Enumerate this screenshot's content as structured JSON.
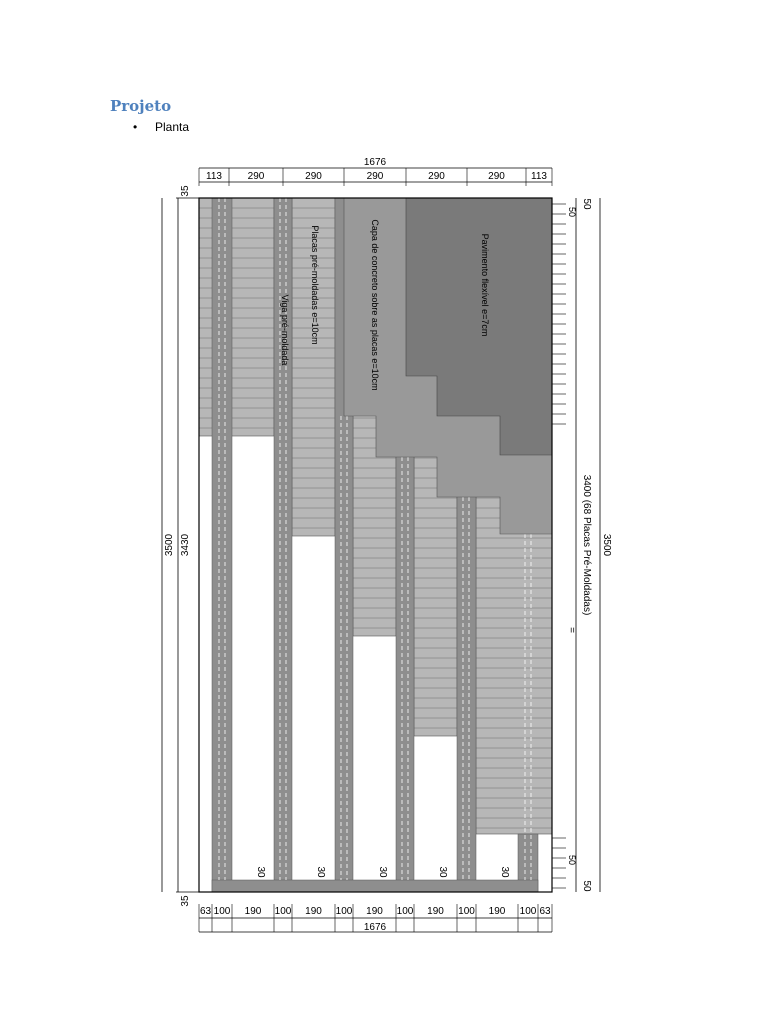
{
  "heading": "Projeto",
  "bullet": {
    "marker": "•",
    "text": "Planta"
  },
  "dimensions": {
    "total_width": "1676",
    "top_segments": [
      "113",
      "290",
      "290",
      "290",
      "290",
      "290",
      "113"
    ],
    "bottom_segments": [
      "63",
      "100",
      "190",
      "100",
      "190",
      "100",
      "190",
      "100",
      "190",
      "100",
      "190",
      "100",
      "63"
    ],
    "left_top": "35",
    "left_bottom": "35",
    "left_inner": "3430",
    "left_outer": "3500",
    "right_outer": "3500",
    "right_inner": "3400 (68 Placas Pré-Moldadas)",
    "right_top": "50",
    "right_bottom": "50",
    "right_small_top": "50",
    "right_small_bottom": "50",
    "slab_gap": "30",
    "equal_mark": "="
  },
  "labels": {
    "slabs": "Placas pré-moldadas e=10cm",
    "beam": "Viga pré-moldada",
    "concrete_cover": "Capa de concreto sobre as placas e=10cm",
    "flexible_pavement": "Pavimento flexível e=7cm"
  },
  "colors": {
    "slab": "#b7b7b7",
    "beam": "#8e8e8e",
    "cover": "#999999",
    "pavement": "#7a7a7a",
    "line": "#000000"
  }
}
